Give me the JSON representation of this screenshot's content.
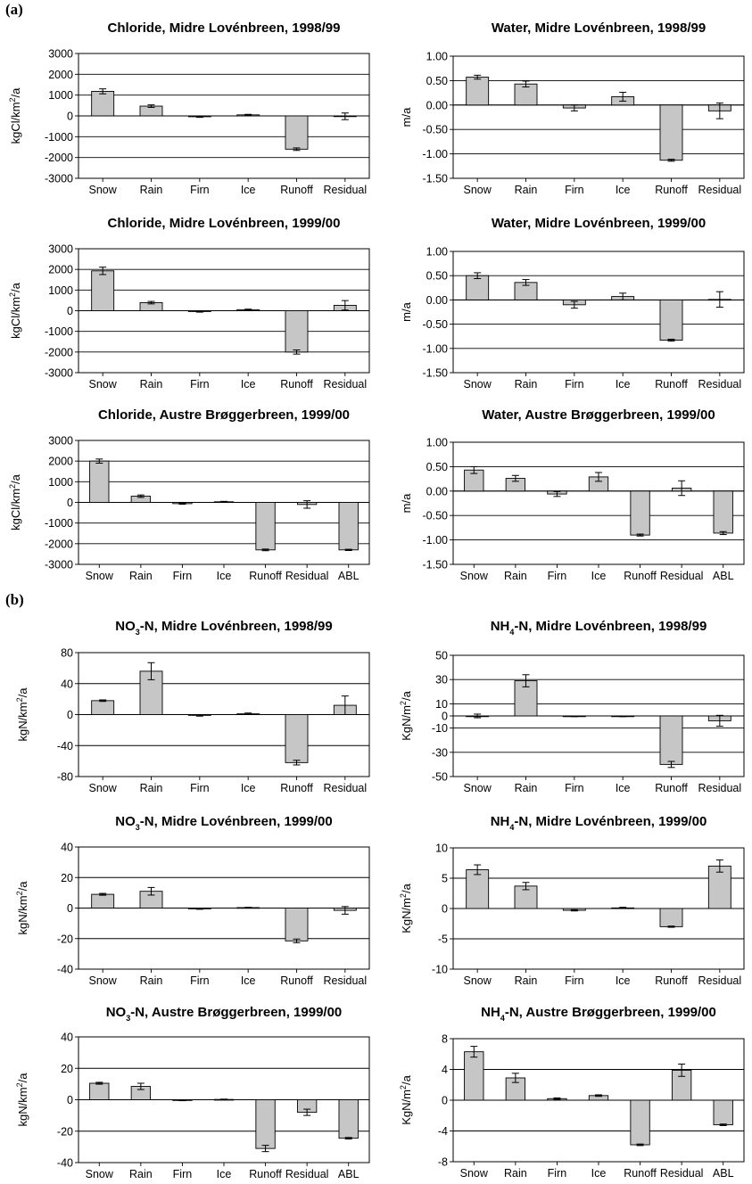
{
  "panel_labels": [
    "(a)",
    "(b)"
  ],
  "chart_data": [
    {
      "type": "bar",
      "title": "Chloride, Midre Lovénbreen, 1998/99",
      "ylabel": "kgCl/km2/a",
      "categories": [
        "Snow",
        "Rain",
        "Firn",
        "Ice",
        "Runoff",
        "Residual"
      ],
      "values": [
        1180,
        470,
        -40,
        50,
        -1600,
        -20
      ],
      "errors": [
        120,
        60,
        30,
        25,
        60,
        160
      ],
      "ylim": [
        -3000,
        3000
      ],
      "yticks": [
        3000,
        2000,
        1000,
        0,
        -1000,
        -2000,
        -3000
      ],
      "grid": true
    },
    {
      "type": "bar",
      "title": "Water, Midre Lovénbreen, 1998/99",
      "ylabel": "m/a",
      "categories": [
        "Snow",
        "Rain",
        "Firn",
        "Ice",
        "Runoff",
        "Residual"
      ],
      "values": [
        0.57,
        0.43,
        -0.06,
        0.17,
        -1.13,
        -0.12
      ],
      "errors": [
        0.04,
        0.06,
        0.06,
        0.09,
        0.02,
        0.16
      ],
      "ylim": [
        -1.5,
        1.0
      ],
      "yticks": [
        "1.00",
        "0.50",
        "0.00",
        "-0.50",
        "-1.00",
        "-1.50"
      ],
      "grid": true
    },
    {
      "type": "bar",
      "title": "Chloride, Midre Lovénbreen, 1999/00",
      "ylabel": "kgCl/km2/a",
      "categories": [
        "Snow",
        "Rain",
        "Firn",
        "Ice",
        "Runoff",
        "Residual"
      ],
      "values": [
        1930,
        390,
        -40,
        50,
        -2000,
        260
      ],
      "errors": [
        180,
        60,
        30,
        25,
        100,
        230
      ],
      "ylim": [
        -3000,
        3000
      ],
      "yticks": [
        3000,
        2000,
        1000,
        0,
        -1000,
        -2000,
        -3000
      ],
      "grid": true
    },
    {
      "type": "bar",
      "title": "Water, Midre Lovénbreen, 1999/00",
      "ylabel": "m/a",
      "categories": [
        "Snow",
        "Rain",
        "Firn",
        "Ice",
        "Runoff",
        "Residual"
      ],
      "values": [
        0.5,
        0.36,
        -0.1,
        0.07,
        -0.83,
        0.01
      ],
      "errors": [
        0.06,
        0.06,
        0.07,
        0.07,
        0.02,
        0.16
      ],
      "ylim": [
        -1.5,
        1.0
      ],
      "yticks": [
        "1.00",
        "0.50",
        "0.00",
        "-0.50",
        "-1.00",
        "-1.50"
      ],
      "grid": true
    },
    {
      "type": "bar",
      "title": "Chloride, Austre Brøggerbreen, 1999/00",
      "ylabel": "kgCl/km2/a",
      "categories": [
        "Snow",
        "Rain",
        "Firn",
        "Ice",
        "Runoff",
        "Residual",
        "ABL"
      ],
      "values": [
        2000,
        300,
        -60,
        30,
        -2300,
        -100,
        -2300
      ],
      "errors": [
        100,
        60,
        30,
        20,
        40,
        180,
        30
      ],
      "ylim": [
        -3000,
        3000
      ],
      "yticks": [
        3000,
        2000,
        1000,
        0,
        -1000,
        -2000,
        -3000
      ],
      "grid": true
    },
    {
      "type": "bar",
      "title": "Water, Austre Brøggerbreen, 1999/00",
      "ylabel": "m/a",
      "categories": [
        "Snow",
        "Rain",
        "Firn",
        "Ice",
        "Runoff",
        "Residual",
        "ABL"
      ],
      "values": [
        0.43,
        0.26,
        -0.06,
        0.29,
        -0.9,
        0.06,
        -0.86
      ],
      "errors": [
        0.07,
        0.06,
        0.05,
        0.09,
        0.02,
        0.15,
        0.03
      ],
      "ylim": [
        -1.5,
        1.0
      ],
      "yticks": [
        "1.00",
        "0.50",
        "0.00",
        "-0.50",
        "-1.00",
        "-1.50"
      ],
      "grid": true
    },
    {
      "type": "bar",
      "title": "NO3-N, Midre Lovénbreen, 1998/99",
      "ylabel": "kgN/km2/a",
      "categories": [
        "Snow",
        "Rain",
        "Firn",
        "Ice",
        "Runoff",
        "Residual"
      ],
      "values": [
        18,
        56,
        -1,
        1,
        -62,
        12
      ],
      "errors": [
        1,
        11,
        1,
        1,
        3,
        12
      ],
      "ylim": [
        -80,
        80
      ],
      "yticks": [
        80,
        40,
        0,
        -40,
        -80
      ],
      "grid": true
    },
    {
      "type": "bar",
      "title": "NH4-N, Midre Lovénbreen, 1998/99",
      "ylabel": "KgN/m2/a",
      "categories": [
        "Snow",
        "Rain",
        "Firn",
        "Ice",
        "Runoff",
        "Residual"
      ],
      "values": [
        0,
        29,
        -0.3,
        -0.3,
        -40,
        -4
      ],
      "errors": [
        1.5,
        5,
        0.3,
        0.3,
        2.5,
        4.5
      ],
      "ylim": [
        -50,
        50
      ],
      "yticks": [
        50,
        30,
        10,
        -10,
        -30,
        -50
      ],
      "ticks_include_zero": true,
      "grid": true
    },
    {
      "type": "bar",
      "title": "NO3-N, Midre Lovénbreen, 1999/00",
      "ylabel": "kgN/km2/a",
      "categories": [
        "Snow",
        "Rain",
        "Firn",
        "Ice",
        "Runoff",
        "Residual"
      ],
      "values": [
        9,
        11,
        -0.5,
        0.3,
        -21.5,
        -1.5
      ],
      "errors": [
        0.6,
        2.5,
        0.3,
        0.2,
        1.2,
        2.5
      ],
      "ylim": [
        -40,
        40
      ],
      "yticks": [
        40,
        20,
        0,
        -20,
        -40
      ],
      "grid": true
    },
    {
      "type": "bar",
      "title": "NH4-N, Midre Lovénbreen, 1999/00",
      "ylabel": "KgN/m2/a",
      "categories": [
        "Snow",
        "Rain",
        "Firn",
        "Ice",
        "Runoff",
        "Residual"
      ],
      "values": [
        6.4,
        3.7,
        -0.3,
        0.1,
        -3.0,
        7.0
      ],
      "errors": [
        0.8,
        0.6,
        0.1,
        0.1,
        0.1,
        1.0
      ],
      "ylim": [
        -10,
        10
      ],
      "yticks": [
        10,
        5,
        0,
        -5,
        -10
      ],
      "grid": true
    },
    {
      "type": "bar",
      "title": "NO3-N, Austre Brøggerbreen, 1999/00",
      "ylabel": "kgN/km2/a",
      "categories": [
        "Snow",
        "Rain",
        "Firn",
        "Ice",
        "Runoff",
        "Residual",
        "ABL"
      ],
      "values": [
        10.5,
        8.5,
        -0.3,
        0.2,
        -31,
        -8,
        -24.5
      ],
      "errors": [
        0.6,
        2,
        0.3,
        0.2,
        2,
        2,
        0.5
      ],
      "ylim": [
        -40,
        40
      ],
      "yticks": [
        40,
        20,
        0,
        -20,
        -40
      ],
      "grid": true
    },
    {
      "type": "bar",
      "title": "NH4-N, Austre Brøggerbreen, 1999/00",
      "ylabel": "KgN/m2/a",
      "categories": [
        "Snow",
        "Rain",
        "Firn",
        "Ice",
        "Runoff",
        "Residual",
        "ABL"
      ],
      "values": [
        6.3,
        2.9,
        0.2,
        0.6,
        -5.8,
        3.9,
        -3.2
      ],
      "errors": [
        0.7,
        0.6,
        0.1,
        0.1,
        0.1,
        0.8,
        0.1
      ],
      "ylim": [
        -8,
        8
      ],
      "yticks": [
        8,
        4,
        0,
        -4,
        -8
      ],
      "grid": true
    }
  ]
}
